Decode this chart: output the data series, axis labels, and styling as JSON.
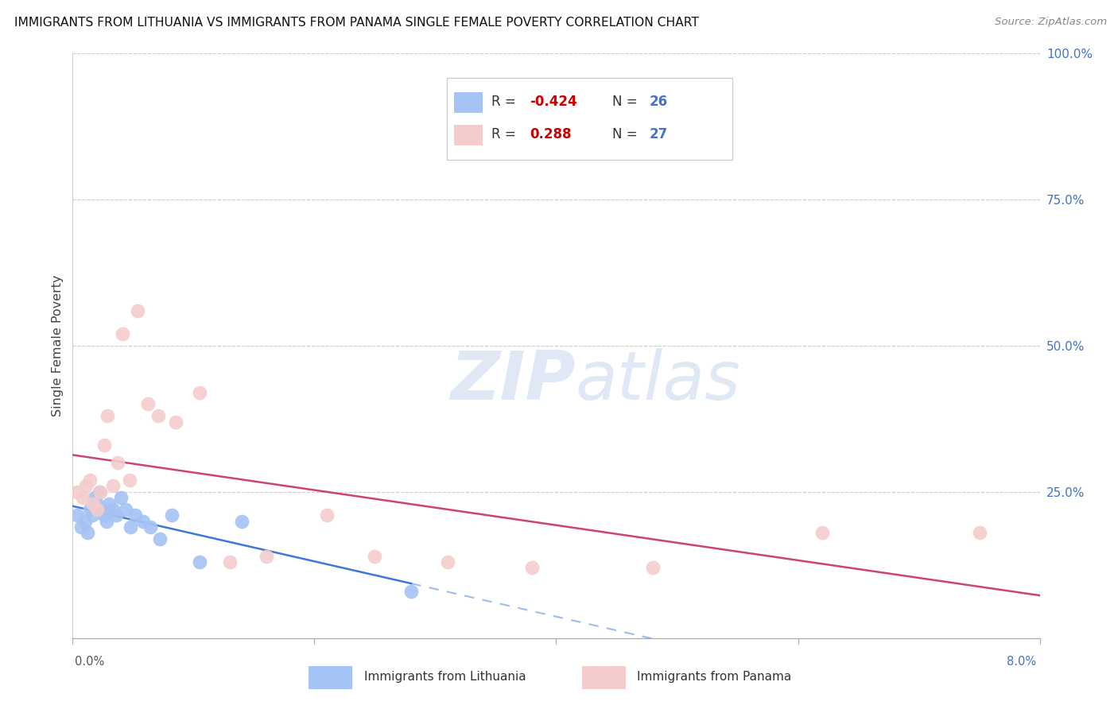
{
  "title": "IMMIGRANTS FROM LITHUANIA VS IMMIGRANTS FROM PANAMA SINGLE FEMALE POVERTY CORRELATION CHART",
  "source": "Source: ZipAtlas.com",
  "ylabel": "Single Female Poverty",
  "legend_blue_r": "-0.424",
  "legend_blue_n": "26",
  "legend_pink_r": "0.288",
  "legend_pink_n": "27",
  "legend_blue_label": "Immigrants from Lithuania",
  "legend_pink_label": "Immigrants from Panama",
  "blue_scatter_color": "#a4c2f4",
  "pink_scatter_color": "#f4cccc",
  "blue_line_color": "#3c78d8",
  "pink_line_color": "#cc4477",
  "right_axis_color": "#4472c4",
  "watermark_color": "#ccd9f0",
  "grid_color": "#cccccc",
  "xlim": [
    0.0,
    8.0
  ],
  "ylim": [
    0.0,
    100.0
  ],
  "y_ticks": [
    25,
    50,
    75,
    100
  ],
  "y_labels": [
    "25.0%",
    "50.0%",
    "75.0%",
    "100.0%"
  ],
  "lithuania_x": [
    0.04,
    0.07,
    0.1,
    0.12,
    0.14,
    0.16,
    0.18,
    0.2,
    0.22,
    0.24,
    0.26,
    0.28,
    0.3,
    0.33,
    0.36,
    0.4,
    0.44,
    0.48,
    0.52,
    0.58,
    0.64,
    0.72,
    0.82,
    1.05,
    1.4,
    2.8
  ],
  "lithuania_y": [
    21,
    19,
    20,
    18,
    22,
    21,
    24,
    23,
    25,
    22,
    21,
    20,
    23,
    22,
    21,
    24,
    22,
    19,
    21,
    20,
    19,
    17,
    21,
    13,
    20,
    8
  ],
  "panama_x": [
    0.04,
    0.08,
    0.11,
    0.14,
    0.17,
    0.2,
    0.23,
    0.26,
    0.29,
    0.33,
    0.37,
    0.41,
    0.47,
    0.54,
    0.62,
    0.71,
    0.85,
    1.05,
    1.3,
    1.6,
    2.1,
    2.5,
    3.1,
    3.8,
    4.8,
    6.2,
    7.5
  ],
  "panama_y": [
    25,
    24,
    26,
    27,
    23,
    22,
    25,
    33,
    38,
    26,
    30,
    52,
    27,
    56,
    40,
    38,
    37,
    42,
    13,
    14,
    21,
    14,
    13,
    12,
    12,
    18,
    18
  ],
  "lith_line_x_end": 2.8,
  "pan_line_x_end": 8.0,
  "lith_solid_end": 2.8,
  "lith_dash_end": 8.0
}
